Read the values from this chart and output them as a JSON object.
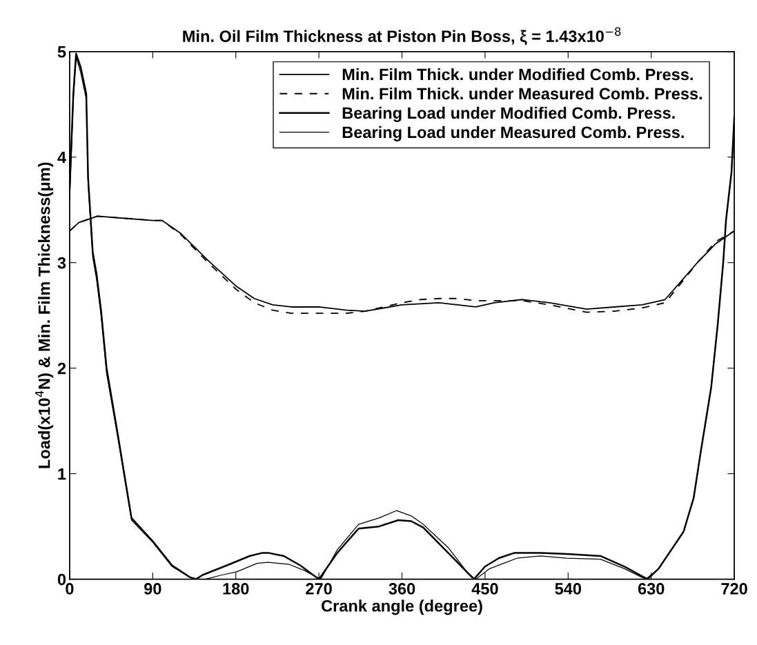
{
  "chart_data": {
    "type": "line",
    "title": "Min. Oil Film Thickness at Piston Pin Boss, ξ = 1.43x10$^{−8}$",
    "xlabel": "Crank angle (degree)",
    "ylabel": "Load(x10$^{4}$N) & Min. Film Thickness(μm)",
    "xlim": [
      0,
      720
    ],
    "ylim": [
      0,
      5
    ],
    "xticks": [
      0,
      90,
      180,
      270,
      360,
      450,
      540,
      630,
      720
    ],
    "yticks": [
      0,
      1,
      2,
      3,
      4,
      5
    ],
    "grid": false,
    "legend": "top right",
    "series": [
      {
        "name": "Min. Film Thick. under Modified Comb. Press.",
        "color": "#000000",
        "line_style": "solid",
        "x": [
          0,
          10,
          30,
          60,
          90,
          100,
          120,
          150,
          180,
          200,
          220,
          240,
          270,
          300,
          320,
          340,
          360,
          380,
          400,
          420,
          440,
          460,
          490,
          520,
          560,
          590,
          620,
          645,
          660,
          680,
          700,
          720
        ],
        "values": [
          3.3,
          3.38,
          3.44,
          3.42,
          3.4,
          3.4,
          3.28,
          3.02,
          2.78,
          2.66,
          2.6,
          2.58,
          2.58,
          2.55,
          2.54,
          2.57,
          2.6,
          2.61,
          2.62,
          2.6,
          2.58,
          2.62,
          2.65,
          2.62,
          2.56,
          2.58,
          2.6,
          2.65,
          2.8,
          3.0,
          3.18,
          3.3
        ]
      },
      {
        "name": "Min. Film Thick. under Measured Comb. Press.",
        "color": "#000000",
        "line_style": "dashed",
        "x": [
          0,
          10,
          30,
          60,
          90,
          100,
          120,
          150,
          180,
          200,
          220,
          240,
          270,
          300,
          320,
          340,
          360,
          380,
          400,
          420,
          440,
          460,
          490,
          520,
          560,
          590,
          620,
          645,
          660,
          680,
          700,
          720
        ],
        "values": [
          3.3,
          3.38,
          3.44,
          3.42,
          3.4,
          3.4,
          3.27,
          3.0,
          2.75,
          2.62,
          2.55,
          2.52,
          2.52,
          2.52,
          2.54,
          2.58,
          2.62,
          2.65,
          2.66,
          2.66,
          2.64,
          2.64,
          2.64,
          2.6,
          2.53,
          2.54,
          2.57,
          2.62,
          2.78,
          3.0,
          3.2,
          3.3
        ]
      },
      {
        "name": "Bearing Load under Modified Comb. Press.",
        "color": "#000000",
        "line_style": "solid",
        "x": [
          0,
          4,
          7,
          12,
          18,
          20,
          25,
          29,
          34,
          40,
          52,
          67,
          90,
          111,
          130,
          137,
          144,
          170,
          195,
          209,
          215,
          232,
          250,
          270,
          290,
          313,
          335,
          356,
          370,
          383,
          410,
          438,
          450,
          465,
          482,
          510,
          538,
          575,
          601,
          626,
          638,
          665,
          676,
          683,
          695,
          702,
          708,
          711,
          717,
          720
        ],
        "values": [
          3.7,
          4.6,
          4.98,
          4.85,
          4.6,
          3.8,
          3.1,
          2.9,
          2.55,
          2.0,
          1.38,
          0.58,
          0.36,
          0.13,
          0.02,
          0.0,
          0.04,
          0.13,
          0.22,
          0.25,
          0.25,
          0.22,
          0.13,
          0.0,
          0.25,
          0.48,
          0.5,
          0.56,
          0.55,
          0.49,
          0.25,
          0.0,
          0.12,
          0.2,
          0.25,
          0.25,
          0.24,
          0.22,
          0.12,
          0.0,
          0.1,
          0.45,
          0.77,
          1.17,
          1.82,
          2.41,
          3.0,
          3.4,
          3.86,
          4.38
        ]
      },
      {
        "name": "Bearing Load under Measured Comb. Press.",
        "color": "#000000",
        "line_style": "solid",
        "x": [
          0,
          4,
          7,
          12,
          18,
          20,
          25,
          29,
          34,
          40,
          52,
          67,
          90,
          111,
          130,
          140,
          147,
          165,
          181,
          203,
          215,
          238,
          255,
          272,
          290,
          313,
          335,
          354,
          370,
          383,
          410,
          432,
          440,
          455,
          470,
          485,
          510,
          538,
          575,
          601,
          624,
          638,
          665,
          676,
          683,
          695,
          702,
          708,
          711,
          717,
          720
        ],
        "values": [
          3.6,
          4.55,
          4.95,
          4.8,
          4.55,
          3.75,
          3.05,
          2.85,
          2.5,
          1.95,
          1.35,
          0.56,
          0.35,
          0.12,
          0.02,
          0.0,
          0.0,
          0.04,
          0.07,
          0.15,
          0.16,
          0.14,
          0.08,
          0.0,
          0.28,
          0.52,
          0.58,
          0.65,
          0.6,
          0.52,
          0.3,
          0.05,
          0.0,
          0.1,
          0.15,
          0.2,
          0.22,
          0.2,
          0.19,
          0.1,
          0.0,
          0.1,
          0.45,
          0.77,
          1.17,
          1.82,
          2.41,
          3.0,
          3.4,
          3.86,
          4.3
        ]
      }
    ]
  }
}
